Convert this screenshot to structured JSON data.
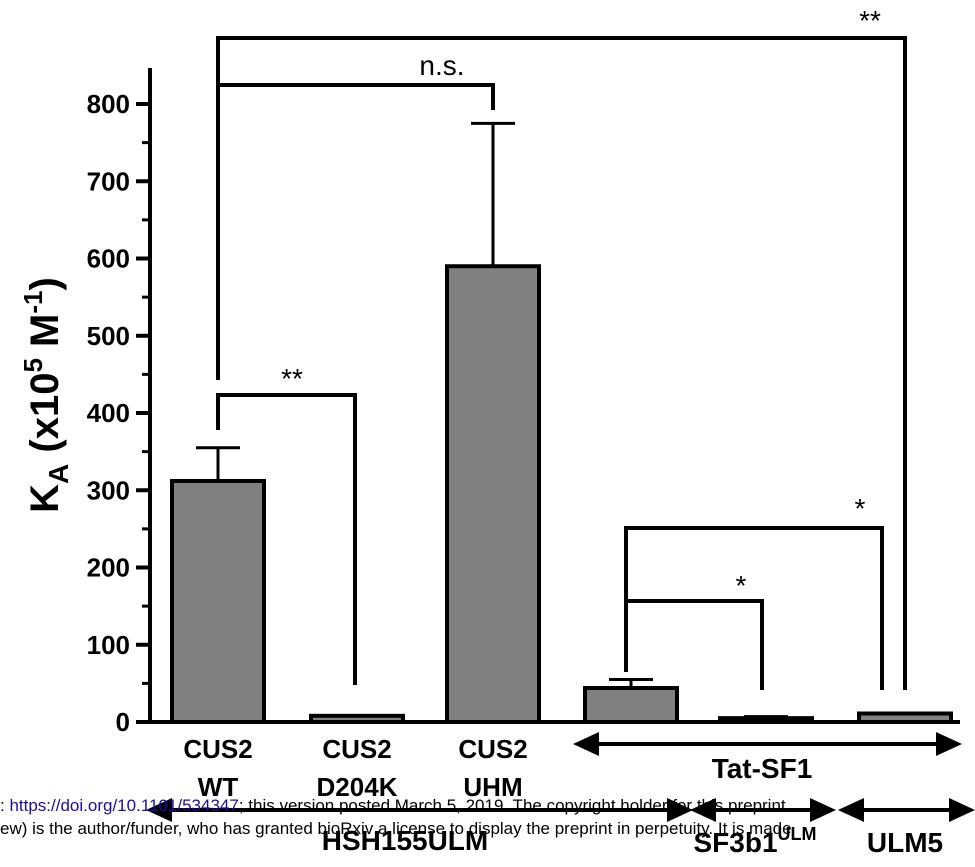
{
  "colors": {
    "bar_fill": "#808080",
    "stroke": "#000000",
    "link": "#1a0dab"
  },
  "chart_data": {
    "type": "bar",
    "title": "",
    "ylabel_main": "K",
    "ylabel_sub": "A",
    "ylabel_rest": " (x10",
    "ylabel_sup1": "5",
    "ylabel_mid": " M",
    "ylabel_sup2": "-1",
    "ylabel_end": ")",
    "ylim": [
      0,
      800
    ],
    "yticks": [
      0,
      100,
      200,
      300,
      400,
      500,
      600,
      700,
      800
    ],
    "grid": false,
    "bars": [
      {
        "label1": "CUS2",
        "label2": "WT",
        "value": 312,
        "error": 43
      },
      {
        "label1": "CUS2",
        "label2": "D204K",
        "value": 8,
        "error": 0
      },
      {
        "label1": "CUS2",
        "label2": "UHM",
        "value": 590,
        "error": 185
      },
      {
        "label1": "",
        "label2": "",
        "value": 44,
        "error": 11
      },
      {
        "label1": "",
        "label2": "",
        "value": 5,
        "error": 2
      },
      {
        "label1": "",
        "label2": "",
        "value": 11,
        "error": 0
      }
    ],
    "significance": [
      "**",
      "n.s.",
      "**",
      "*",
      "*"
    ],
    "groups": {
      "tat_sf1": "Tat-SF1",
      "hsh155": "HSH155ULM",
      "sf3b1_main": "SF3b1",
      "sf3b1_sup": "ULM",
      "ulm5": "ULM5"
    }
  },
  "footer": {
    "line1_prefix": ": ",
    "line1_link": "https://doi.org/10.1101/534347",
    "line1_rest": "; this version posted March 5, 2019. The copyright holder for this preprint",
    "line2": "ew) is the author/funder, who has granted bioRxiv a license to display the preprint in perpetuity. It is made"
  }
}
